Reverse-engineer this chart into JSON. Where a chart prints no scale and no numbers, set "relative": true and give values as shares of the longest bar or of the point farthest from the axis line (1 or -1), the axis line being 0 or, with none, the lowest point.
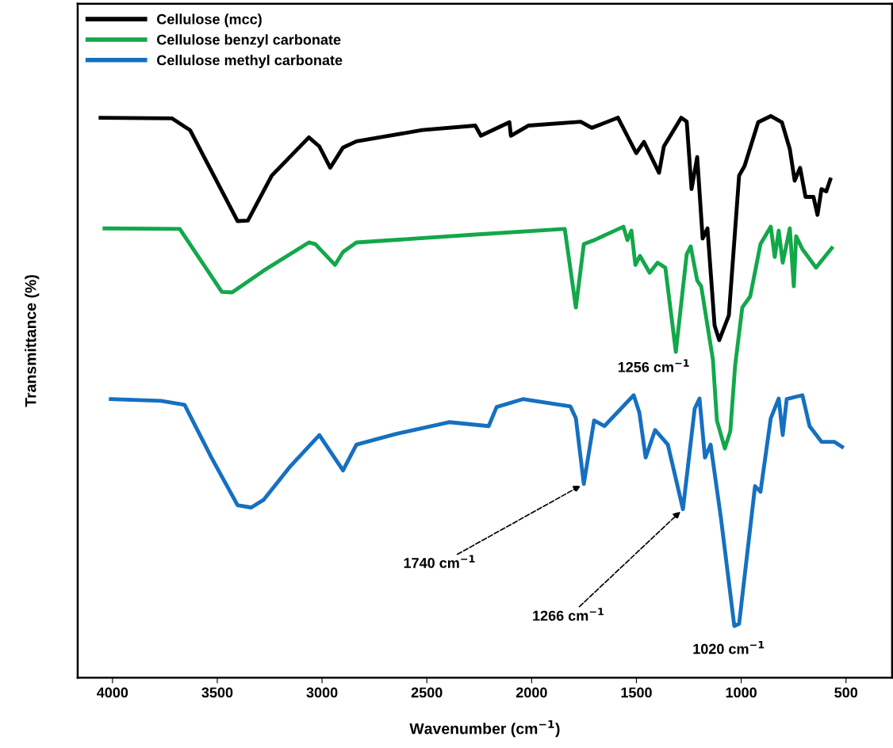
{
  "chart_data": {
    "type": "line",
    "relative": true,
    "xlabel": "Wavenumber (cm$^{−1}$)",
    "ylabel": "Transmittance (%)",
    "xlim": [
      4166,
      280
    ],
    "xticks": [
      4000,
      3500,
      3000,
      2500,
      2000,
      1500,
      1000,
      500
    ],
    "legend": "top left",
    "grid": false,
    "line_style": "solid",
    "marker": "none",
    "series": [
      {
        "name": "Cellulose (mcc)",
        "color": "#000000",
        "x": [
          4057,
          3717,
          3630,
          3403,
          3354,
          3240,
          3063,
          3013,
          2961,
          2900,
          2836,
          2522,
          2269,
          2242,
          2106,
          2099,
          2016,
          1766,
          1713,
          1588,
          1501,
          1464,
          1392,
          1369,
          1286,
          1260,
          1237,
          1210,
          1184,
          1161,
          1127,
          1105,
          1059,
          1010,
          984,
          919,
          859,
          806,
          768,
          745,
          719,
          693,
          655,
          636,
          617,
          594,
          575
        ],
        "values": [
          0.997,
          0.996,
          0.975,
          0.813,
          0.814,
          0.894,
          0.962,
          0.946,
          0.908,
          0.944,
          0.955,
          0.975,
          0.983,
          0.965,
          0.989,
          0.965,
          0.983,
          0.99,
          0.979,
          0.997,
          0.934,
          0.954,
          0.899,
          0.946,
          0.997,
          0.99,
          0.87,
          0.927,
          0.782,
          0.8,
          0.627,
          0.601,
          0.645,
          0.894,
          0.911,
          0.989,
          1.0,
          0.989,
          0.941,
          0.885,
          0.908,
          0.856,
          0.856,
          0.824,
          0.87,
          0.866,
          0.887
        ]
      },
      {
        "name": "Cellulose benzyl carbonate",
        "color": "#12a84a",
        "x": [
          4038,
          3679,
          3478,
          3429,
          3278,
          3063,
          3032,
          2938,
          2900,
          2836,
          2269,
          1842,
          1789,
          1751,
          1702,
          1562,
          1543,
          1524,
          1505,
          1483,
          1437,
          1399,
          1362,
          1312,
          1260,
          1241,
          1210,
          1191,
          1135,
          1116,
          1078,
          1052,
          1029,
          995,
          957,
          908,
          859,
          840,
          821,
          802,
          768,
          749,
          738,
          708,
          643,
          568
        ],
        "values": [
          0.8,
          0.799,
          0.687,
          0.686,
          0.725,
          0.775,
          0.772,
          0.735,
          0.758,
          0.775,
          0.789,
          0.799,
          0.659,
          0.772,
          0.779,
          0.803,
          0.779,
          0.796,
          0.735,
          0.751,
          0.721,
          0.739,
          0.73,
          0.58,
          0.754,
          0.768,
          0.707,
          0.697,
          0.566,
          0.458,
          0.408,
          0.439,
          0.556,
          0.659,
          0.679,
          0.772,
          0.803,
          0.749,
          0.796,
          0.739,
          0.8,
          0.697,
          0.786,
          0.763,
          0.73,
          0.765
        ]
      },
      {
        "name": "Cellulose methyl carbonate",
        "color": "#1570c0",
        "x": [
          4008,
          3769,
          3656,
          3528,
          3403,
          3338,
          3278,
          3150,
          3013,
          2900,
          2836,
          2647,
          2394,
          2205,
          2167,
          2042,
          1815,
          1789,
          1751,
          1702,
          1653,
          1513,
          1486,
          1456,
          1411,
          1350,
          1278,
          1222,
          1199,
          1173,
          1146,
          1097,
          1033,
          1010,
          934,
          908,
          859,
          821,
          802,
          783,
          708,
          674,
          617,
          556,
          519
        ],
        "values": [
          0.496,
          0.493,
          0.486,
          0.392,
          0.307,
          0.303,
          0.317,
          0.377,
          0.432,
          0.369,
          0.415,
          0.434,
          0.455,
          0.448,
          0.482,
          0.496,
          0.483,
          0.462,
          0.345,
          0.458,
          0.448,
          0.503,
          0.472,
          0.392,
          0.441,
          0.415,
          0.3,
          0.479,
          0.497,
          0.392,
          0.415,
          0.285,
          0.092,
          0.096,
          0.341,
          0.331,
          0.462,
          0.497,
          0.432,
          0.496,
          0.503,
          0.448,
          0.42,
          0.42,
          0.411
        ]
      }
    ],
    "annotations": [
      {
        "text": "1256 cm$^{−1}$",
        "x": 1312,
        "y": 0.58
      },
      {
        "text": "1740 cm$^{−1}$",
        "x": 1751,
        "y": 0.345
      },
      {
        "text": "1266 cm$^{−1}$",
        "x": 1278,
        "y": 0.3
      },
      {
        "text": "1020 cm$^{−1}$",
        "x": 1033,
        "y": 0.092
      }
    ]
  }
}
